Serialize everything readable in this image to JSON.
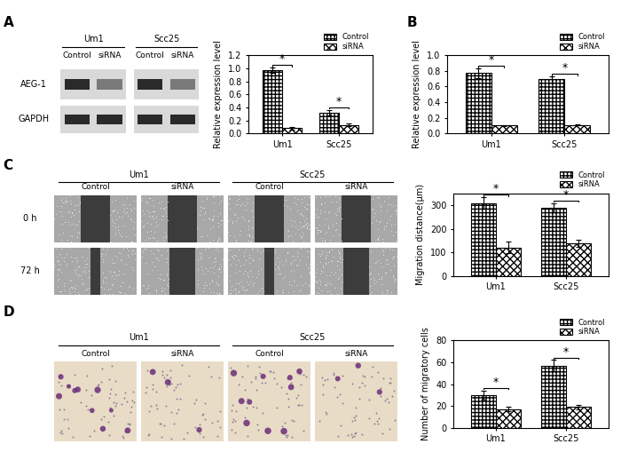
{
  "figure": {
    "panel_labels": [
      "A",
      "B",
      "C",
      "D"
    ],
    "blot": {
      "groups": [
        "Um1",
        "Scc25"
      ],
      "lanes": [
        "Control",
        "siRNA"
      ],
      "rows": [
        "AEG-1",
        "GAPDH"
      ]
    },
    "wound_healing": {
      "groups": [
        "Um1",
        "Scc25"
      ],
      "lanes": [
        "Control",
        "siRNA"
      ],
      "rows": [
        "0 h",
        "72 h"
      ]
    },
    "transwell": {
      "groups": [
        "Um1",
        "Scc25"
      ],
      "lanes": [
        "Control",
        "siRNA"
      ]
    }
  },
  "chart_data": [
    {
      "type": "bar",
      "categories": [
        "Um1",
        "Scc25"
      ],
      "series": [
        {
          "name": "Control",
          "color": "#ffffff",
          "values": [
            0.97,
            0.32
          ],
          "errors": [
            0.04,
            0.04
          ]
        },
        {
          "name": "siRNA",
          "color": "#ffffff",
          "values": [
            0.08,
            0.13
          ],
          "errors": [
            0.02,
            0.02
          ]
        }
      ],
      "ylabel": "Relative expression level",
      "ylim": [
        0,
        1.2
      ],
      "yticks": [
        {
          "value": 0.0,
          "label": "0.0"
        },
        {
          "value": 0.2,
          "label": "0.2"
        },
        {
          "value": 0.4,
          "label": "0.4"
        },
        {
          "value": 0.6,
          "label": "0.6"
        },
        {
          "value": 0.8,
          "label": "0.8"
        },
        {
          "value": 1.0,
          "label": "1.0"
        },
        {
          "value": 1.2,
          "label": "1.2"
        }
      ],
      "legend": "upper right",
      "significance": [
        "*",
        "*"
      ]
    },
    {
      "type": "bar",
      "categories": [
        "Um1",
        "Scc25"
      ],
      "series": [
        {
          "name": "Control",
          "color": "#ffffff",
          "values": [
            0.77,
            0.69
          ],
          "errors": [
            0.06,
            0.04
          ]
        },
        {
          "name": "siRNA",
          "color": "#ffffff",
          "values": [
            0.1,
            0.11
          ],
          "errors": [
            0.01,
            0.01
          ]
        }
      ],
      "ylabel": "Relative expression level",
      "ylim": [
        0,
        1.0
      ],
      "yticks": [
        {
          "value": 0.0,
          "label": "0.0"
        },
        {
          "value": 0.2,
          "label": "0.2"
        },
        {
          "value": 0.4,
          "label": "0.4"
        },
        {
          "value": 0.6,
          "label": "0.6"
        },
        {
          "value": 0.8,
          "label": "0.8"
        },
        {
          "value": 1.0,
          "label": "1.0"
        }
      ],
      "legend": "upper right",
      "significance": [
        "*",
        "*"
      ]
    },
    {
      "type": "bar",
      "categories": [
        "Um1",
        "Scc25"
      ],
      "series": [
        {
          "name": "Control",
          "color": "#ffffff",
          "values": [
            308,
            288
          ],
          "errors": [
            25,
            20
          ]
        },
        {
          "name": "siRNA",
          "color": "#ffffff",
          "values": [
            120,
            137
          ],
          "errors": [
            25,
            15
          ]
        }
      ],
      "ylabel": "Migration distance(μm)",
      "ylim": [
        0,
        350
      ],
      "yticks": [
        0,
        100,
        200,
        300
      ],
      "legend": "upper right",
      "significance": [
        "*",
        "*"
      ]
    },
    {
      "type": "bar",
      "categories": [
        "Um1",
        "Scc25"
      ],
      "series": [
        {
          "name": "Control",
          "color": "#ffffff",
          "values": [
            30,
            57
          ],
          "errors": [
            4,
            5
          ]
        },
        {
          "name": "siRNA",
          "color": "#ffffff",
          "values": [
            17,
            19
          ],
          "errors": [
            2,
            2
          ]
        }
      ],
      "ylabel": "Number of migratory cells",
      "ylim": [
        0,
        80
      ],
      "yticks": [
        0,
        20,
        40,
        60,
        80
      ],
      "legend": "upper right",
      "significance": [
        "*",
        "*"
      ]
    }
  ]
}
